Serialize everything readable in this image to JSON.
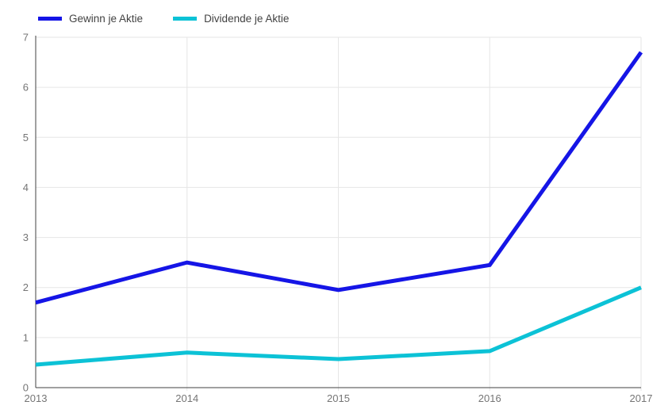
{
  "legend": {
    "items": [
      {
        "label": "Gewinn je Aktie"
      },
      {
        "label": "Dividende je Aktie"
      }
    ]
  },
  "chart_data": {
    "type": "line",
    "title": "",
    "x_labels": [
      "2013",
      "2014",
      "2015",
      "2016",
      "2017"
    ],
    "series": [
      {
        "name": "Gewinn je Aktie",
        "color": "#1515e6",
        "values": [
          1.7,
          2.5,
          1.95,
          2.45,
          6.7
        ]
      },
      {
        "name": "Dividende je Aktie",
        "color": "#0cc2d6",
        "values": [
          0.46,
          0.7,
          0.57,
          0.73,
          2.0
        ]
      }
    ],
    "ylim": [
      0,
      7
    ],
    "yticks": [
      0,
      1,
      2,
      3,
      4,
      5,
      6,
      7
    ],
    "grid": true,
    "legend_position": "top-left",
    "axis_color": "#424242",
    "grid_color": "#e6e6e6",
    "tick_label_color": "#757575",
    "line_width": 5
  }
}
